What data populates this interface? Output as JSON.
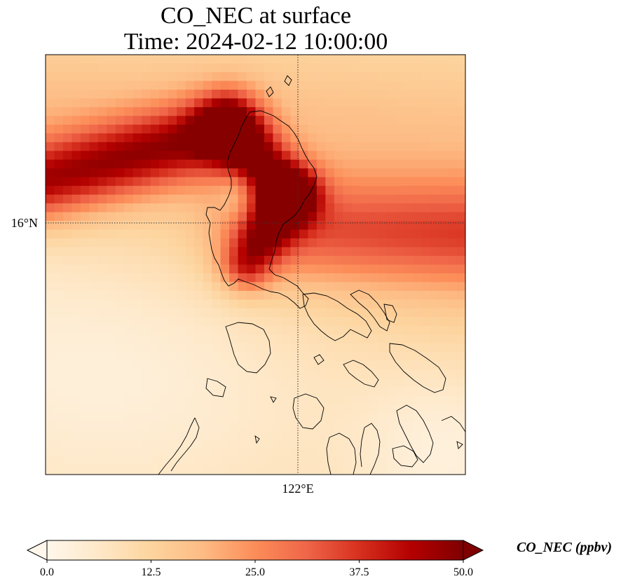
{
  "chart_data": {
    "type": "heatmap",
    "title_line1": "CO_NEC at surface",
    "title_line2": "Time: 2024-02-12 10:00:00",
    "variable": "CO_NEC",
    "units": "ppbv",
    "colormap": "OrRd",
    "colormap_stops": [
      "#fff7ec",
      "#fee8c8",
      "#fdd49e",
      "#fdbb84",
      "#fc8d59",
      "#ef6548",
      "#d7301f",
      "#b30000",
      "#7f0000"
    ],
    "value_range": [
      0.0,
      50.0
    ],
    "colorbar_extend": "both",
    "x_axis": {
      "label": "",
      "tick_labels": [
        "122°E"
      ],
      "tick_values": [
        122
      ]
    },
    "y_axis": {
      "label": "",
      "tick_labels": [
        "16°N"
      ],
      "tick_values": [
        16
      ]
    },
    "gridlines": "dotted at labelled ticks",
    "colorbar": {
      "ticks": [
        0.0,
        12.5,
        25.0,
        37.5,
        50.0
      ],
      "tick_labels": [
        "0.0",
        "12.5",
        "25.0",
        "37.5",
        "50.0"
      ],
      "label": "CO_NEC (ppbv)",
      "orientation": "horizontal",
      "placement": "bottom"
    },
    "field_features": [
      {
        "description": "high-concentration band entering from west at ~16.5°N",
        "peak_value": 45
      },
      {
        "description": "maximum over northern Luzon near 16.5–17°N, 121°E",
        "peak_value": 48
      },
      {
        "description": "moderate plume extending east over ocean at ~16°N",
        "peak_value": 32
      },
      {
        "description": "low background to the south and west",
        "peak_value": 6
      }
    ]
  }
}
